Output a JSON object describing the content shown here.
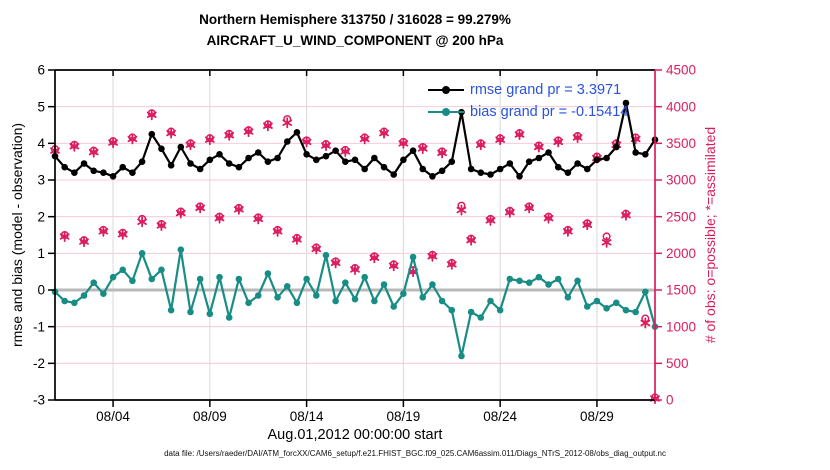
{
  "chart_data": {
    "type": "line",
    "title": "Northern Hemisphere 313750 / 316028 = 99.279%",
    "subtitle": "AIRCRAFT_U_WIND_COMPONENT @ 200 hPa",
    "xlabel": "Aug.01,2012 00:00:00 start",
    "ylabel_left": "rmse and bias (model - observation)",
    "ylabel_right": "# of obs: o=possible; *=assimilated",
    "footer": "data file: /Users/raeder/DAI/ATM_forcXX/CAM6_setup/f.e21.FHIST_BGC.f09_025.CAM6assim.011/Diags_NTrS_2012-08/obs_diag_output.nc",
    "grid": "on",
    "legend_position": "upper-right-inside",
    "legend": [
      {
        "label": "rmse grand pr = 3.3971",
        "color": "#000000"
      },
      {
        "label": "bias grand pr = -0.15414",
        "color": "#188d85"
      }
    ],
    "colors": {
      "rmse": "#000000",
      "bias": "#188d85",
      "obs": "#dc1c60",
      "legend_text": "#2a52e0",
      "h_gridline": "#f6ccd9",
      "v_gridline": "#d9d9d9",
      "zero_line": "#b9b9b9"
    },
    "x_axis": {
      "range_days": [
        0,
        31
      ],
      "step_days": 0.5,
      "ticks": [
        {
          "day": 3,
          "label": "08/04"
        },
        {
          "day": 8,
          "label": "08/09"
        },
        {
          "day": 13,
          "label": "08/14"
        },
        {
          "day": 18,
          "label": "08/19"
        },
        {
          "day": 23,
          "label": "08/24"
        },
        {
          "day": 28,
          "label": "08/29"
        }
      ]
    },
    "y_axis_left": {
      "range": [
        -3,
        6
      ],
      "ticks": [
        -3,
        -2,
        -1,
        0,
        1,
        2,
        3,
        4,
        5,
        6
      ]
    },
    "y_axis_right": {
      "range": [
        0,
        4500
      ],
      "ticks": [
        0,
        500,
        1000,
        1500,
        2000,
        2500,
        3000,
        3500,
        4000,
        4500
      ]
    },
    "series": [
      {
        "name": "rmse",
        "axis": "left",
        "marker": "filled-circle",
        "values": [
          3.65,
          3.35,
          3.2,
          3.45,
          3.25,
          3.2,
          3.1,
          3.35,
          3.2,
          3.5,
          4.25,
          3.85,
          3.4,
          3.9,
          3.45,
          3.3,
          3.55,
          3.7,
          3.45,
          3.35,
          3.6,
          3.75,
          3.5,
          3.6,
          4.05,
          4.3,
          3.7,
          3.55,
          3.65,
          3.8,
          3.5,
          3.55,
          3.3,
          3.6,
          3.35,
          3.15,
          3.55,
          3.8,
          3.3,
          3.1,
          3.25,
          3.5,
          4.85,
          3.3,
          3.2,
          3.15,
          3.3,
          3.45,
          3.1,
          3.5,
          3.6,
          3.75,
          3.35,
          3.2,
          3.45,
          3.3,
          3.55,
          3.6,
          3.9,
          5.1,
          3.75,
          3.7,
          4.1
        ]
      },
      {
        "name": "bias",
        "axis": "left",
        "marker": "filled-circle",
        "values": [
          -0.05,
          -0.3,
          -0.35,
          -0.15,
          0.2,
          -0.1,
          0.35,
          0.55,
          0.25,
          1.0,
          0.3,
          0.55,
          -0.55,
          1.1,
          -0.6,
          0.3,
          -0.65,
          0.35,
          -0.75,
          0.3,
          -0.35,
          -0.15,
          0.45,
          -0.2,
          0.1,
          -0.35,
          0.3,
          -0.15,
          0.95,
          -0.3,
          0.2,
          -0.25,
          0.35,
          -0.3,
          0.15,
          -0.45,
          -0.1,
          0.9,
          -0.2,
          0.15,
          -0.3,
          -0.55,
          -1.8,
          -0.6,
          -0.75,
          -0.3,
          -0.55,
          0.3,
          0.25,
          0.2,
          0.35,
          0.15,
          0.3,
          -0.2,
          0.25,
          -0.45,
          -0.3,
          -0.5,
          -0.35,
          -0.55,
          -0.6,
          -0.05,
          -1.0
        ]
      },
      {
        "name": "possible",
        "axis": "right",
        "marker": "open-circle",
        "values": [
          3420,
          2250,
          3480,
          2180,
          3400,
          2320,
          3530,
          2280,
          3580,
          2470,
          3910,
          2400,
          3660,
          2570,
          3500,
          2640,
          3570,
          2500,
          3630,
          2620,
          3680,
          2490,
          3760,
          2320,
          3830,
          2210,
          3540,
          2080,
          3490,
          1890,
          3410,
          1800,
          3580,
          1960,
          3660,
          1850,
          3520,
          1770,
          3450,
          1980,
          3390,
          1870,
          2650,
          2200,
          3500,
          2470,
          3570,
          2580,
          3640,
          2640,
          3470,
          2500,
          3540,
          2320,
          3600,
          2410,
          3320,
          2230,
          3500,
          2540,
          3580,
          1110,
          35
        ]
      },
      {
        "name": "assimilated",
        "axis": "right",
        "marker": "asterisk",
        "values": [
          3400,
          2230,
          3460,
          2160,
          3380,
          2300,
          3510,
          2260,
          3560,
          2430,
          3890,
          2380,
          3640,
          2550,
          3480,
          2620,
          3550,
          2480,
          3610,
          2600,
          3660,
          2470,
          3740,
          2300,
          3780,
          2190,
          3520,
          2060,
          3470,
          1870,
          3390,
          1780,
          3560,
          1940,
          3640,
          1830,
          3500,
          1750,
          3430,
          1960,
          3370,
          1850,
          2590,
          2180,
          3480,
          2450,
          3550,
          2560,
          3620,
          2620,
          3450,
          2480,
          3520,
          2300,
          3580,
          2390,
          3300,
          2150,
          3480,
          2520,
          3560,
          1050,
          20
        ]
      }
    ]
  }
}
